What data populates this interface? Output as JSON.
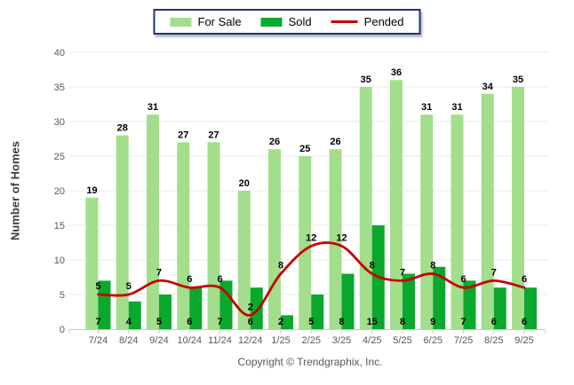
{
  "legend": {
    "items": [
      {
        "label": "For Sale",
        "swatch": "bar",
        "color": "#A2DE8C"
      },
      {
        "label": "Sold",
        "swatch": "bar",
        "color": "#0AA82C"
      },
      {
        "label": "Pended",
        "swatch": "line",
        "color": "#C60000"
      }
    ]
  },
  "chart_data": {
    "type": "bar",
    "title": "",
    "xlabel": "",
    "ylabel": "Number of Homes",
    "ylim": [
      0,
      40
    ],
    "yticks": [
      0,
      5,
      10,
      15,
      20,
      25,
      30,
      35,
      40
    ],
    "grid": "horizontal",
    "legend_position": "top-center",
    "categories": [
      "7/24",
      "8/24",
      "9/24",
      "10/24",
      "11/24",
      "12/24",
      "1/25",
      "2/25",
      "3/25",
      "4/25",
      "5/25",
      "6/25",
      "7/25",
      "8/25",
      "9/25"
    ],
    "series": [
      {
        "name": "For Sale",
        "type": "bar",
        "color": "#A2DE8C",
        "values": [
          19,
          28,
          31,
          27,
          27,
          20,
          26,
          25,
          26,
          35,
          36,
          31,
          31,
          34,
          35
        ]
      },
      {
        "name": "Sold",
        "type": "bar",
        "color": "#0AA82C",
        "values": [
          7,
          4,
          5,
          6,
          7,
          6,
          2,
          5,
          8,
          15,
          8,
          9,
          7,
          6,
          6
        ]
      },
      {
        "name": "Pended",
        "type": "line",
        "color": "#C60000",
        "values": [
          5,
          5,
          7,
          6,
          6,
          2,
          8,
          12,
          12,
          8,
          7,
          8,
          6,
          7,
          6
        ]
      }
    ]
  },
  "colors": {
    "for_sale": "#A2DE8C",
    "sold": "#0AA82C",
    "pended": "#C60000",
    "legend_border": "#1F3968",
    "gridline": "#E8E8E8",
    "axis_line": "#C6C6C6",
    "tick_label": "#595959",
    "data_label": "#000000"
  },
  "footer": {
    "copyright": "Copyright © Trendgraphix, Inc."
  }
}
